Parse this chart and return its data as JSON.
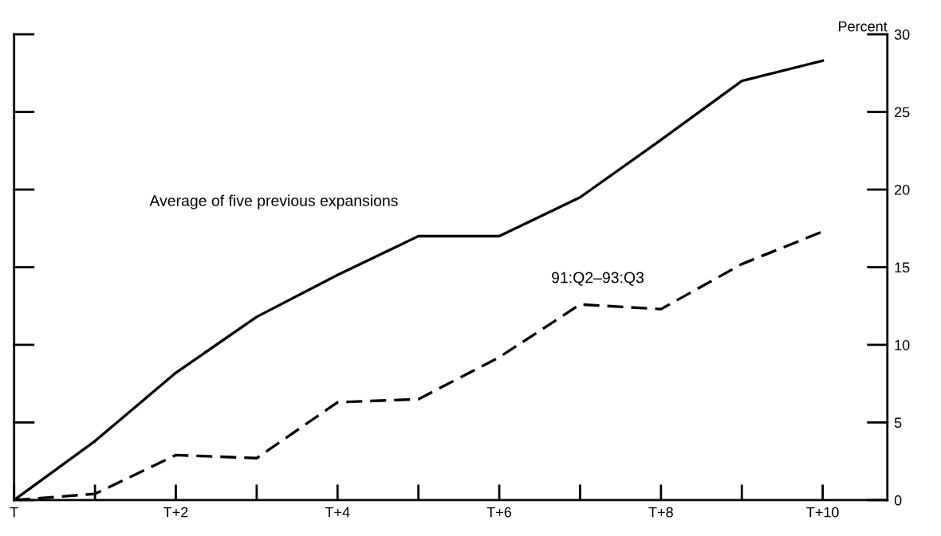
{
  "chart_data": {
    "type": "line",
    "ylabel": "Percent",
    "categories": [
      "T",
      null,
      "T+2",
      null,
      "T+4",
      null,
      "T+6",
      null,
      "T+8",
      null,
      "T+10"
    ],
    "ylim": [
      0,
      30
    ],
    "yticks": [
      0,
      5,
      10,
      15,
      20,
      25,
      30
    ],
    "series": [
      {
        "color": "#000000",
        "line_style": "solid",
        "values": [
          0,
          3.8,
          8.2,
          11.8,
          14.5,
          17,
          17,
          19.5,
          23.2,
          27,
          28.3
        ]
      },
      {
        "color": "#000000",
        "line_style": "dashed",
        "values": [
          0,
          0.4,
          2.9,
          2.7,
          6.3,
          6.5,
          9.2,
          12.6,
          12.3,
          15.2,
          17.3
        ]
      }
    ],
    "annotations": [
      "Average of five previous expansions",
      "91:Q2–93:Q3"
    ],
    "grid": false,
    "legend": false,
    "marker": "none"
  }
}
